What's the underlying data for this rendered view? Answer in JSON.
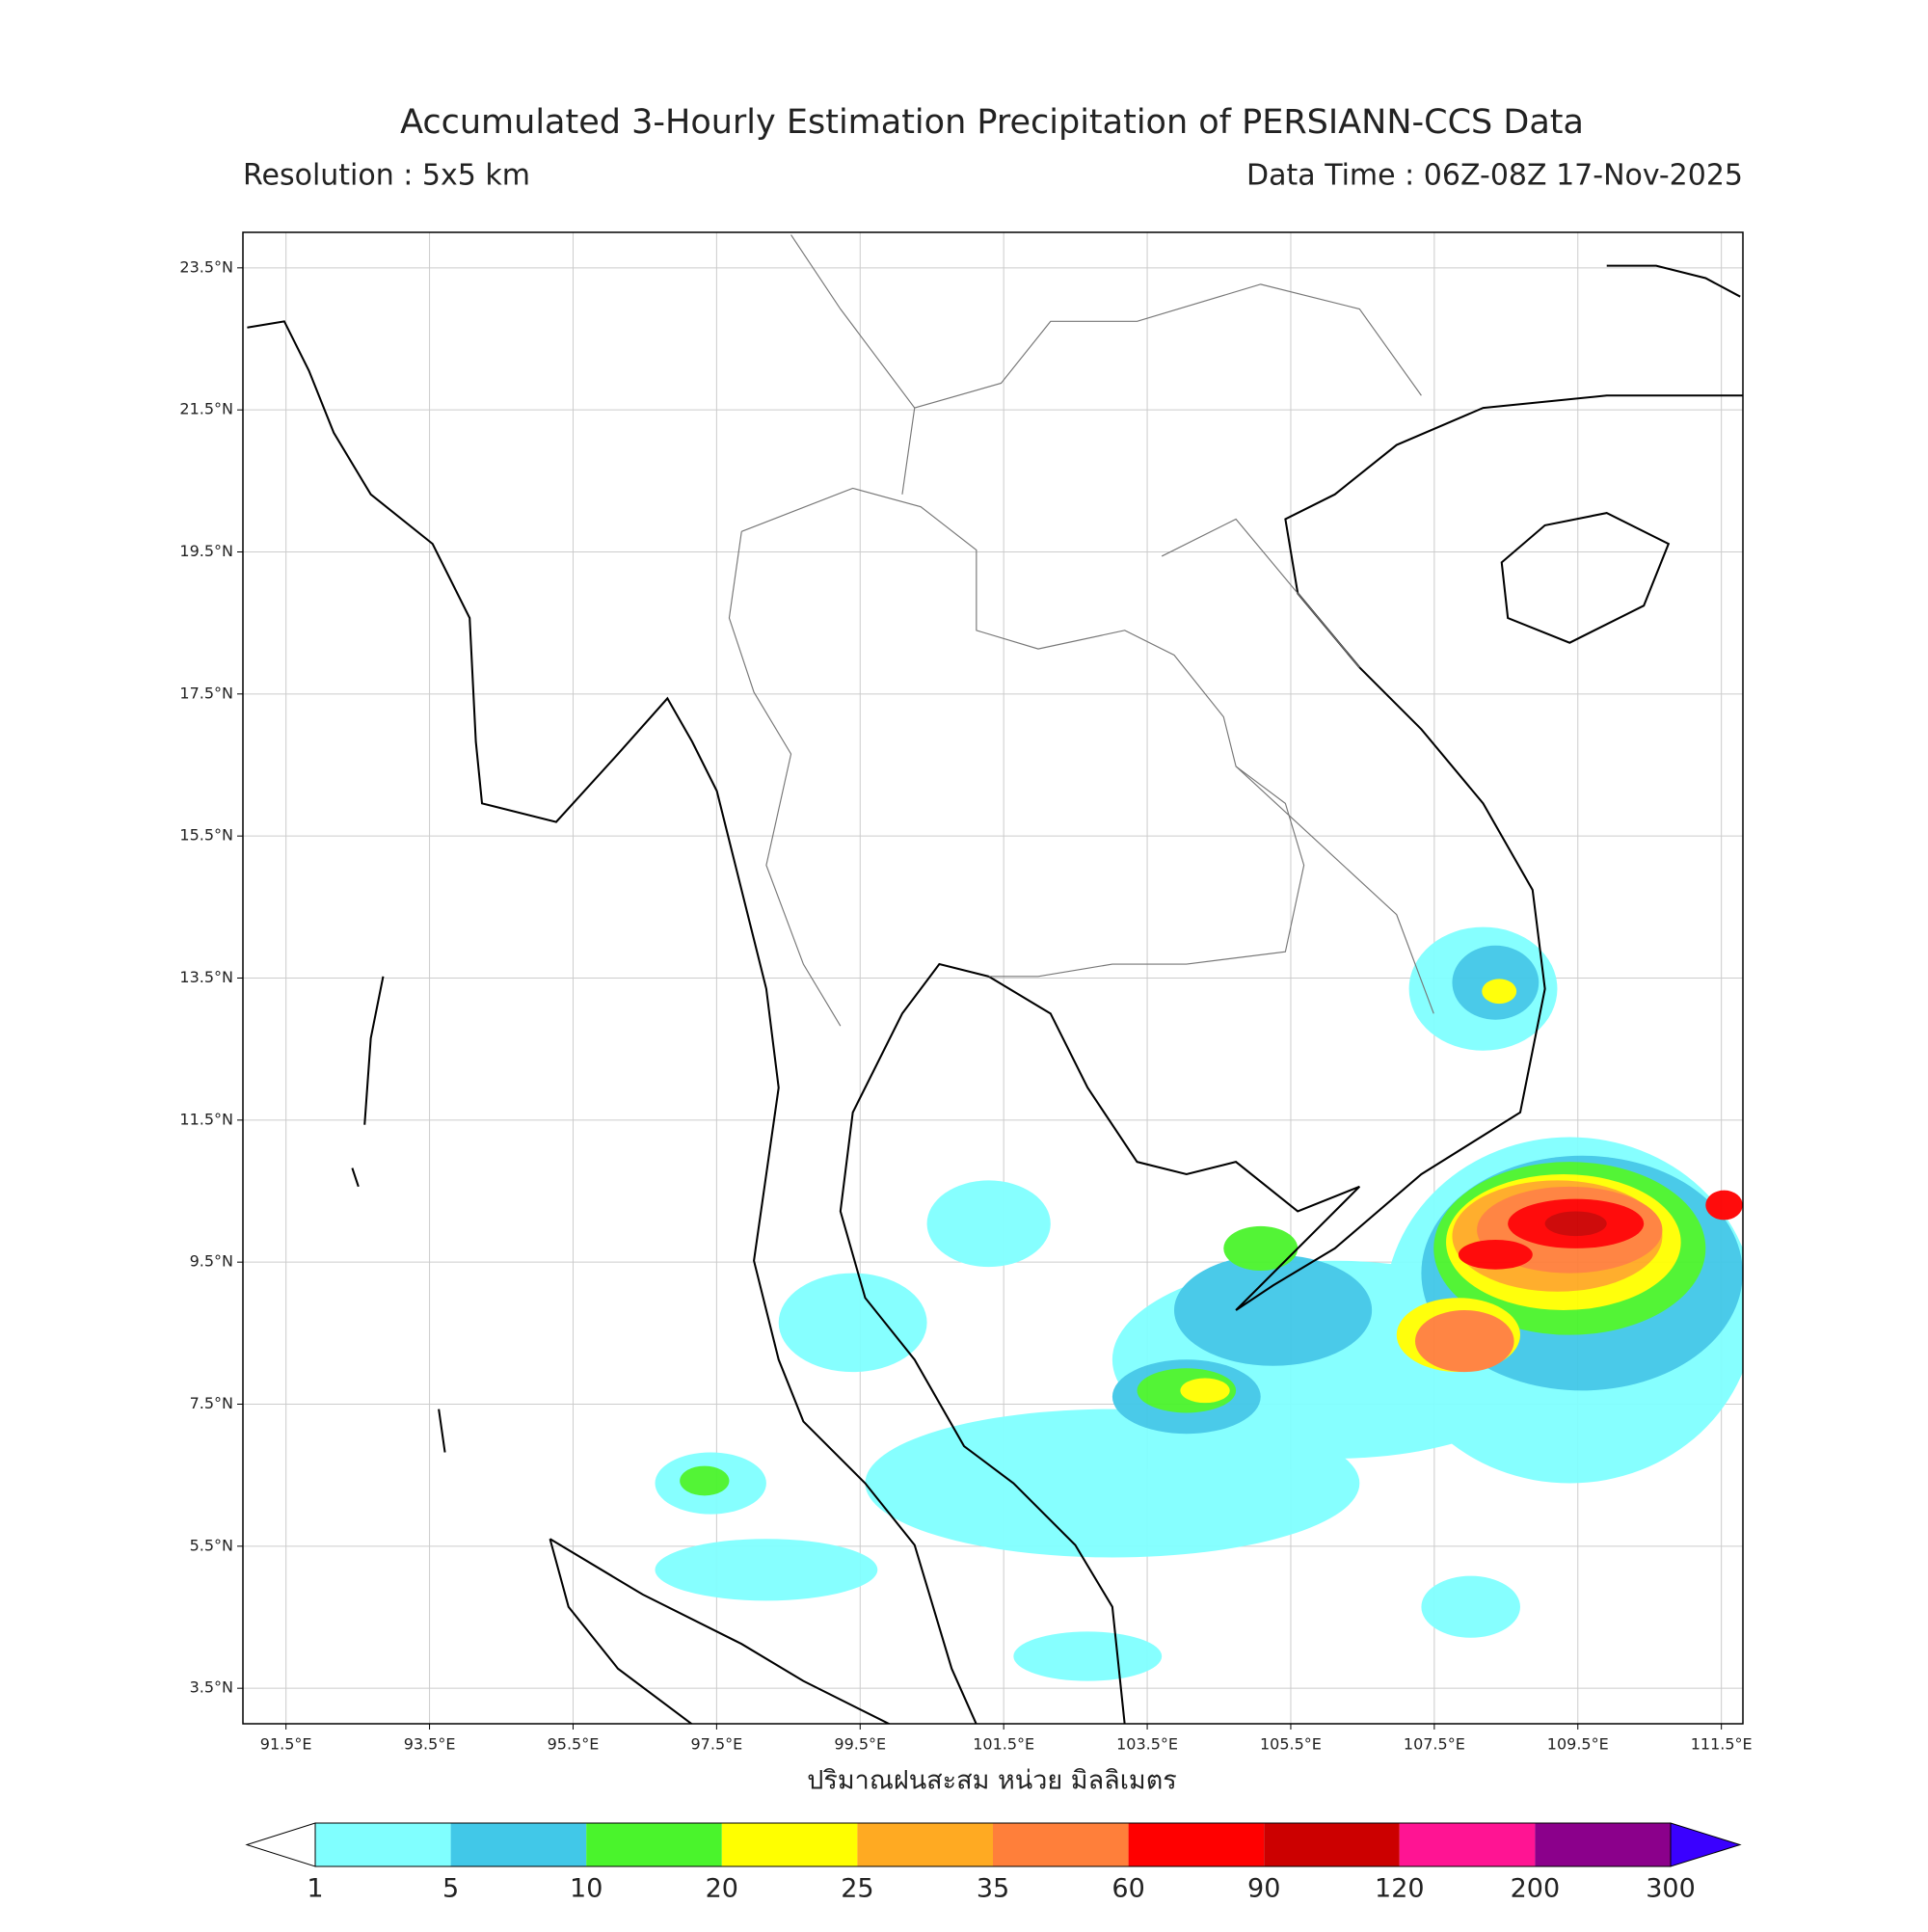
{
  "chart_data": {
    "type": "map",
    "title": "Accumulated 3-Hourly Estimation Precipitation of PERSIANN-CCS Data",
    "subtitle_left": "Resolution : 5x5 km",
    "subtitle_right": "Data Time : 06Z-08Z 17-Nov-2025",
    "xlabel": "ปริมาณฝนสะสม หน่วย มิลลิเมตร",
    "xlim": [
      90.9,
      111.8
    ],
    "ylim": [
      3.0,
      24.0
    ],
    "xticks": [
      {
        "value": 91.5,
        "label": "91.5°E"
      },
      {
        "value": 93.5,
        "label": "93.5°E"
      },
      {
        "value": 95.5,
        "label": "95.5°E"
      },
      {
        "value": 97.5,
        "label": "97.5°E"
      },
      {
        "value": 99.5,
        "label": "99.5°E"
      },
      {
        "value": 101.5,
        "label": "101.5°E"
      },
      {
        "value": 103.5,
        "label": "103.5°E"
      },
      {
        "value": 105.5,
        "label": "105.5°E"
      },
      {
        "value": 107.5,
        "label": "107.5°E"
      },
      {
        "value": 109.5,
        "label": "109.5°E"
      },
      {
        "value": 111.5,
        "label": "111.5°E"
      }
    ],
    "yticks": [
      {
        "value": 3.5,
        "label": "3.5°N"
      },
      {
        "value": 5.5,
        "label": "5.5°N"
      },
      {
        "value": 7.5,
        "label": "7.5°N"
      },
      {
        "value": 9.5,
        "label": "9.5°N"
      },
      {
        "value": 11.5,
        "label": "11.5°N"
      },
      {
        "value": 13.5,
        "label": "13.5°N"
      },
      {
        "value": 15.5,
        "label": "15.5°N"
      },
      {
        "value": 17.5,
        "label": "17.5°N"
      },
      {
        "value": 19.5,
        "label": "19.5°N"
      },
      {
        "value": 21.5,
        "label": "21.5°N"
      },
      {
        "value": 23.5,
        "label": "23.5°N"
      }
    ],
    "grid": true,
    "colorbar": {
      "levels": [
        1,
        5,
        10,
        20,
        25,
        35,
        60,
        90,
        120,
        200,
        300
      ],
      "colors": [
        "#80ffff",
        "#41c8e8",
        "#4af42c",
        "#ffff00",
        "#ffaa22",
        "#ff7f3a",
        "#ff0000",
        "#cc0000",
        "#ff1493",
        "#8b008b"
      ],
      "under_color": "#ffffff",
      "over_color": "#3a00ff"
    }
  }
}
